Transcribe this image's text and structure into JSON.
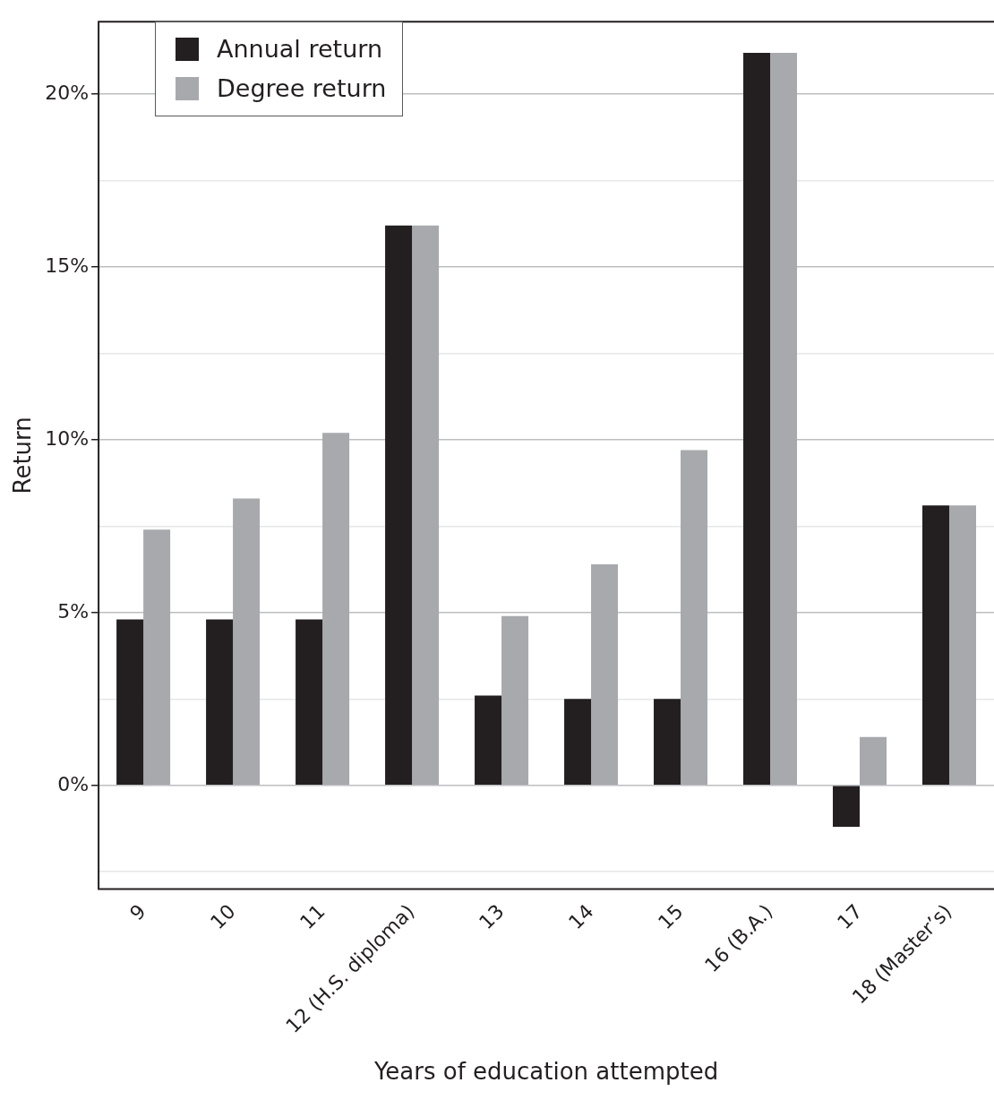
{
  "chart_data": {
    "type": "bar",
    "xlabel": "Years of education attempted",
    "ylabel": "Return",
    "categories": [
      "9",
      "10",
      "11",
      "12 (H.S. diploma)",
      "13",
      "14",
      "15",
      "16 (B.A.)",
      "17",
      "18 (Master’s)"
    ],
    "series": [
      {
        "name": "Annual return",
        "color": "#231f20",
        "values": [
          4.8,
          4.8,
          4.8,
          16.2,
          2.6,
          2.5,
          2.5,
          21.2,
          -1.2,
          8.1
        ]
      },
      {
        "name": "Degree return",
        "color": "#a7a9ac",
        "values": [
          7.4,
          8.3,
          10.2,
          16.2,
          4.9,
          6.4,
          9.7,
          21.2,
          1.4,
          8.1
        ]
      }
    ],
    "ylim": [
      -3,
      22.1
    ],
    "yticks": [
      {
        "value": -2.5,
        "label": null
      },
      {
        "value": 0,
        "label": "0%"
      },
      {
        "value": 2.5,
        "label": null
      },
      {
        "value": 5,
        "label": "5%"
      },
      {
        "value": 7.5,
        "label": null
      },
      {
        "value": 10,
        "label": "10%"
      },
      {
        "value": 12.5,
        "label": null
      },
      {
        "value": 15,
        "label": "15%"
      },
      {
        "value": 17.5,
        "label": null
      },
      {
        "value": 20,
        "label": "20%"
      }
    ],
    "grid": "y",
    "legend": "top left"
  }
}
